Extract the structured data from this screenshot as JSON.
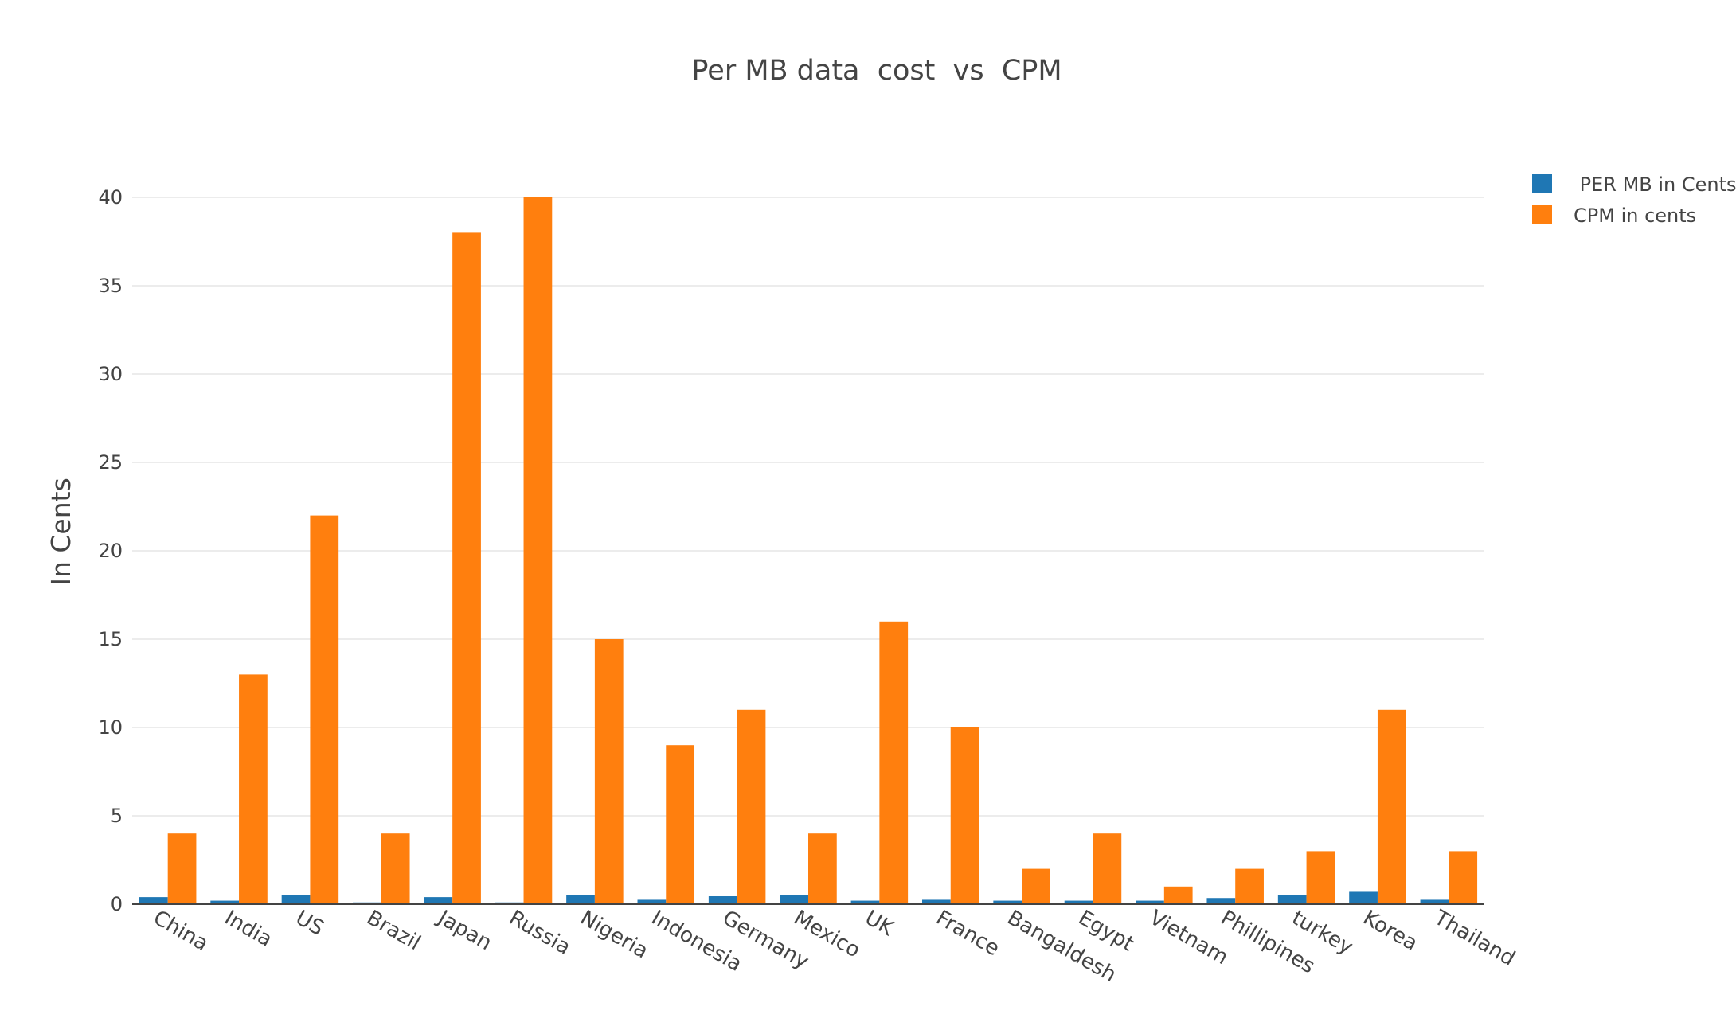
{
  "chart_data": {
    "type": "bar",
    "title": "Per MB data  cost  vs  CPM",
    "xlabel": "",
    "ylabel": "In Cents",
    "ylim": [
      0,
      40
    ],
    "yticks": [
      0,
      5,
      10,
      15,
      20,
      25,
      30,
      35,
      40
    ],
    "grid": true,
    "legend_position": "top-right",
    "categories": [
      "China",
      "India",
      "US",
      "Brazil",
      "Japan",
      "Russia",
      "Nigeria",
      "Indonesia",
      "Germany",
      "Mexico",
      "UK",
      "France",
      "Bangaldesh",
      "Egypt",
      "Vietnam",
      "Phillipines",
      "turkey",
      "Korea",
      "Thailand"
    ],
    "series": [
      {
        "name": " PER MB in Cents",
        "color": "#1f77b4",
        "values": [
          0.4,
          0.2,
          0.5,
          0.1,
          0.4,
          0.1,
          0.5,
          0.25,
          0.45,
          0.5,
          0.2,
          0.25,
          0.2,
          0.2,
          0.2,
          0.35,
          0.5,
          0.7,
          0.25
        ]
      },
      {
        "name": "CPM in cents",
        "color": "#ff7f0e",
        "values": [
          4,
          13,
          22,
          4,
          38,
          40,
          15,
          9,
          11,
          4,
          16,
          10,
          2,
          4,
          1,
          2,
          3,
          11,
          3
        ]
      }
    ]
  }
}
